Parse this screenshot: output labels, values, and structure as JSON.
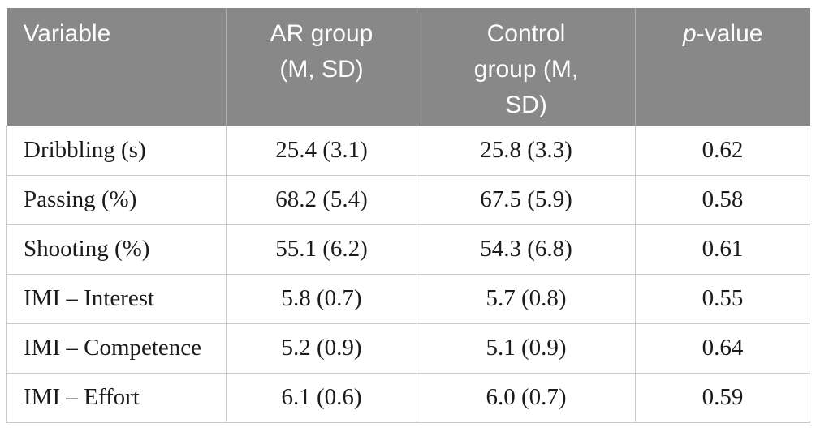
{
  "colors": {
    "page_bg": "#ffffff",
    "header_bg": "#888888",
    "header_text": "#fdfdfd",
    "header_divider": "#b0b0b0",
    "grid_line": "#c9c9c9",
    "body_text": "#1b1b1b"
  },
  "table": {
    "columns": [
      {
        "label": "Variable"
      },
      {
        "label": "AR group (M, SD)"
      },
      {
        "label": "Control group (M, SD)"
      },
      {
        "label_italic": "p",
        "label_rest": "-value"
      }
    ],
    "rows": [
      [
        "Dribbling (s)",
        "25.4 (3.1)",
        "25.8 (3.3)",
        "0.62"
      ],
      [
        "Passing (%)",
        "68.2 (5.4)",
        "67.5 (5.9)",
        "0.58"
      ],
      [
        "Shooting (%)",
        "55.1 (6.2)",
        "54.3 (6.8)",
        "0.61"
      ],
      [
        "IMI – Interest",
        "5.8 (0.7)",
        "5.7 (0.8)",
        "0.55"
      ],
      [
        "IMI – Competence",
        "5.2 (0.9)",
        "5.1 (0.9)",
        "0.64"
      ],
      [
        "IMI – Effort",
        "6.1 (0.6)",
        "6.0 (0.7)",
        "0.59"
      ]
    ]
  }
}
